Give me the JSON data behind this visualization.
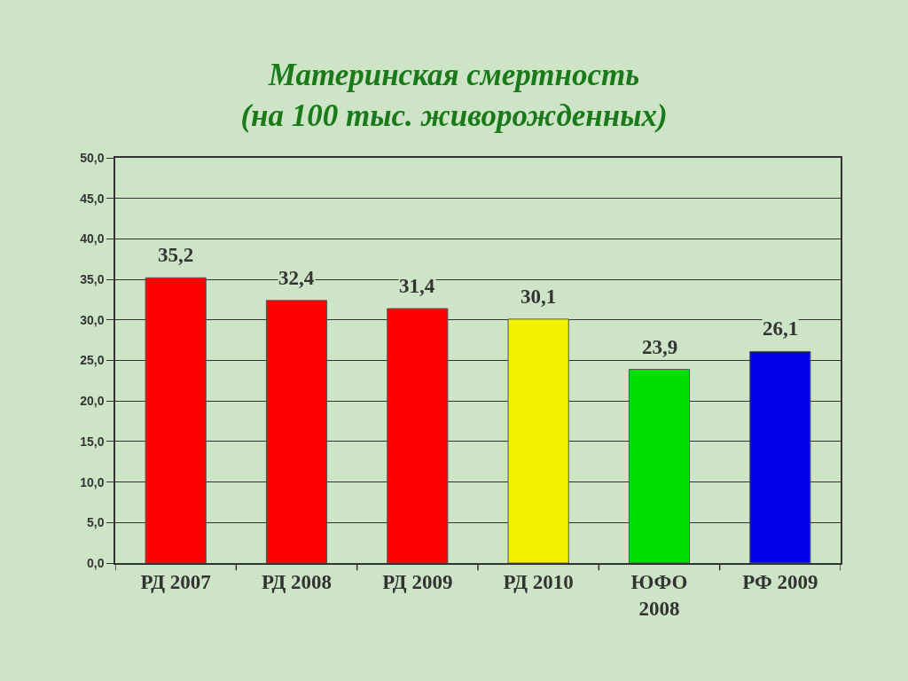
{
  "chart_data": {
    "type": "bar",
    "title": "Материнская смертность\n(на 100 тыс. живорожденных)",
    "categories": [
      "РД 2007",
      "РД 2008",
      "РД 2009",
      "РД 2010",
      "ЮФО\n2008",
      "РФ 2009"
    ],
    "values": [
      35.2,
      32.4,
      31.4,
      30.1,
      23.9,
      26.1
    ],
    "colors": [
      "#ff0000",
      "#ff0000",
      "#ff0000",
      "#f2f200",
      "#00e000",
      "#0000e6"
    ],
    "value_labels": [
      "35,2",
      "32,4",
      "31,4",
      "30,1",
      "23,9",
      "26,1"
    ],
    "ylim": [
      0,
      50
    ],
    "yticks": [
      {
        "value": 0,
        "label": "0,0"
      },
      {
        "value": 5,
        "label": "5,0"
      },
      {
        "value": 10,
        "label": "10,0"
      },
      {
        "value": 15,
        "label": "15,0"
      },
      {
        "value": 20,
        "label": "20,0"
      },
      {
        "value": 25,
        "label": "25,0"
      },
      {
        "value": 30,
        "label": "30,0"
      },
      {
        "value": 35,
        "label": "35,0"
      },
      {
        "value": 40,
        "label": "40,0"
      },
      {
        "value": 45,
        "label": "45,0"
      },
      {
        "value": 50,
        "label": "50,0"
      }
    ],
    "grid": "y"
  }
}
